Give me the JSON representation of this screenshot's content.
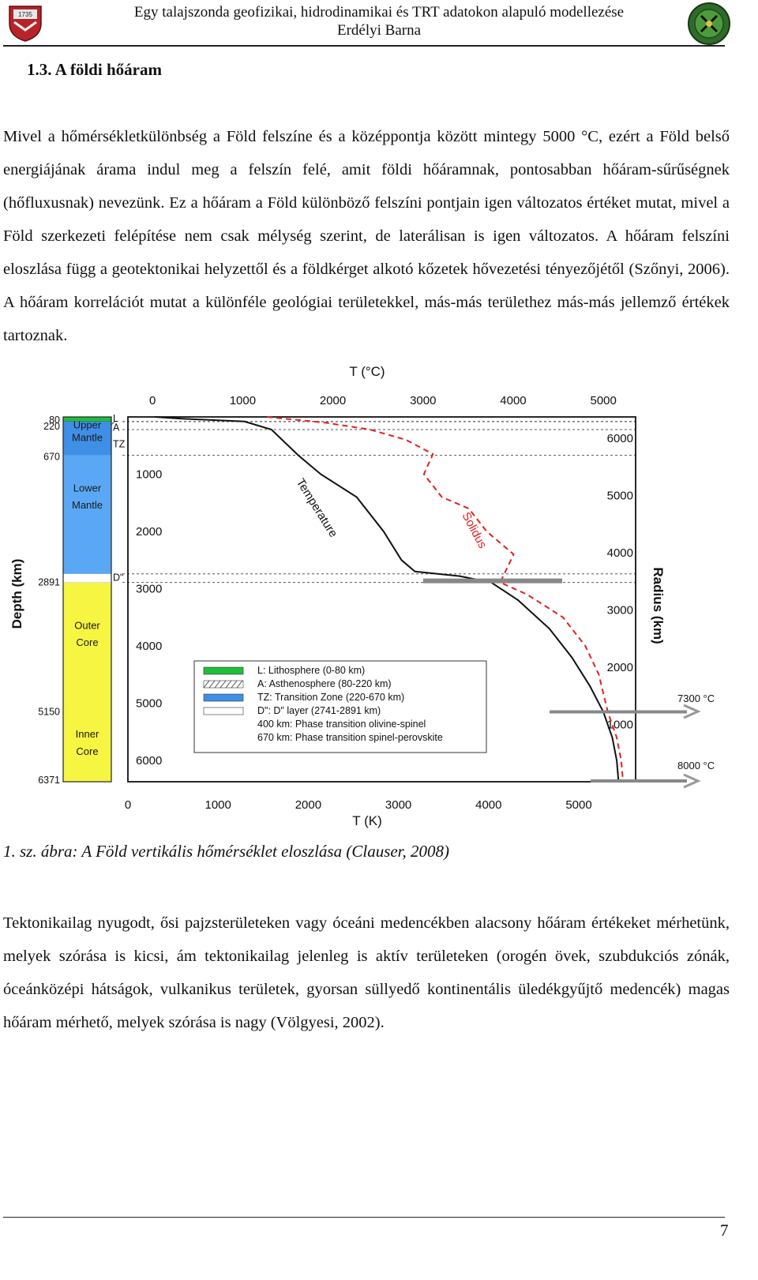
{
  "header": {
    "title": "Egy talajszonda geofizikai, hidrodinamikai és TRT adatokon alapuló modellezése",
    "author": "Erdélyi Barna",
    "logo_left_text": "1735",
    "logo_left_icon": "university-crest-icon",
    "logo_right_icon": "mining-faculty-seal-icon"
  },
  "section": {
    "title": "1.3. A földi hőáram"
  },
  "paragraphs": [
    "Mivel a hőmérsékletkülönbség a Föld felszíne és a középpontja között mintegy 5000 °C, ezért a Föld belső energiájának árama indul meg a felszín felé, amit földi hőáramnak, pontosabban hőáram-sűrűségnek (hőfluxusnak) nevezünk. Ez a hőáram a Föld különböző felszíni pontjain igen változatos értéket mutat, mivel a Föld szerkezeti felépítése nem csak mélység szerint, de laterálisan is igen változatos. A hőáram felszíni eloszlása függ a geotektonikai helyzettől és a földkérget alkotó kőzetek hővezetési tényezőjétől (Szőnyi, 2006). A hőáram korrelációt mutat a különféle geológiai területekkel, más-más területhez más-más jellemző értékek tartoznak.",
    "Tektonikailag nyugodt, ősi pajzsterületeken vagy óceáni medencékben alacsony hőáram értékeket mérhetünk, melyek szórása is kicsi, ám tektonikailag jelenleg is aktív területeken (orogén övek, szubdukciós zónák, óceánközépi hátságok, vulkanikus területek, gyorsan süllyedő kontinentális üledékgyűjtő medencék) magas hőáram mérhető, melyek szórása is nagy (Völgyesi, 2002)."
  ],
  "figure": {
    "caption": "1. sz. ábra: A Föld vertikális hőmérséklet eloszlása (Clauser, 2008)"
  },
  "chart_data": {
    "type": "line",
    "title": "",
    "xlabel_top": "T (°C)",
    "xlabel_bottom": "T (K)",
    "ylabel_left": "Depth (km)",
    "ylabel_right": "Radius (km)",
    "x_ticks_top": [
      "0",
      "1000",
      "2000",
      "3000",
      "4000",
      "5000"
    ],
    "x_ticks_bottom": [
      "0",
      "1000",
      "2000",
      "3000",
      "4000",
      "5000"
    ],
    "y_ticks_left_inner": [
      "1000",
      "2000",
      "3000",
      "4000",
      "5000",
      "6000"
    ],
    "y_ticks_right": [
      "6000",
      "5000",
      "4000",
      "3000",
      "2000",
      "1000"
    ],
    "xlim_K": [
      0,
      5660
    ],
    "ylim_depth_km": [
      0,
      6371
    ],
    "layer_depth_labels": [
      "80",
      "220",
      "670",
      "2891",
      "5150",
      "6371"
    ],
    "layers": [
      {
        "name": "Upper Mantle",
        "label1": "Upper",
        "label2": "Mantle",
        "from": 80,
        "to": 670,
        "color": "#3f8fe6"
      },
      {
        "name": "Lower Mantle",
        "label1": "Lower",
        "label2": "Mantle",
        "from": 670,
        "to": 2741,
        "color": "#5aa8f5"
      },
      {
        "name": "Outer Core",
        "label1": "Outer",
        "label2": "Core",
        "from": 2891,
        "to": 5150,
        "color": "#f5f542"
      },
      {
        "name": "Inner Core",
        "label1": "Inner",
        "label2": "Core",
        "from": 5150,
        "to": 6371,
        "color": "#f5f542"
      }
    ],
    "boundary_labels": [
      "L",
      "A",
      "TZ",
      "D\""
    ],
    "series": [
      {
        "name": "Temperature",
        "color": "#111111",
        "style": "solid",
        "points": [
          [
            300,
            0
          ],
          [
            600,
            30
          ],
          [
            1300,
            80
          ],
          [
            1600,
            220
          ],
          [
            1900,
            670
          ],
          [
            2150,
            1000
          ],
          [
            2550,
            1400
          ],
          [
            2850,
            2000
          ],
          [
            3050,
            2500
          ],
          [
            3200,
            2700
          ],
          [
            3700,
            2780
          ],
          [
            4050,
            2891
          ],
          [
            4350,
            3200
          ],
          [
            4700,
            3700
          ],
          [
            4950,
            4200
          ],
          [
            5150,
            4700
          ],
          [
            5300,
            5150
          ],
          [
            5400,
            5600
          ],
          [
            5450,
            6000
          ],
          [
            5470,
            6371
          ]
        ]
      },
      {
        "name": "Solidus",
        "color": "#e02020",
        "style": "dashed",
        "points": [
          [
            1550,
            0
          ],
          [
            2200,
            100
          ],
          [
            2700,
            220
          ],
          [
            3100,
            400
          ],
          [
            3400,
            650
          ],
          [
            3300,
            1000
          ],
          [
            3500,
            1400
          ],
          [
            3800,
            1600
          ],
          [
            4000,
            2000
          ],
          [
            4300,
            2400
          ],
          [
            4150,
            2891
          ],
          [
            4450,
            3100
          ],
          [
            4850,
            3500
          ],
          [
            5100,
            4000
          ],
          [
            5250,
            4500
          ],
          [
            5350,
            5150
          ],
          [
            5450,
            5600
          ],
          [
            5500,
            6000
          ],
          [
            5520,
            6371
          ]
        ]
      }
    ],
    "annotations": [
      "7300 °C",
      "8000 °C"
    ],
    "legend": {
      "placement": "lower-left",
      "entries": [
        {
          "text": "L: Lithosphere (0-80 km)",
          "swatch": "green"
        },
        {
          "text": "A: Asthenosphere (80-220 km)",
          "swatch": "hatched"
        },
        {
          "text": "TZ: Transition Zone (220-670 km)",
          "swatch": "blue"
        },
        {
          "text": "D\": D\" layer (2741-2891 km)",
          "swatch": "white"
        },
        {
          "text": "400 km: Phase transition olivine-spinel",
          "swatch": "none"
        },
        {
          "text": "670 km: Phase transition spinel-perovskite",
          "swatch": "none"
        }
      ]
    }
  },
  "footer": {
    "page_number": "7"
  }
}
